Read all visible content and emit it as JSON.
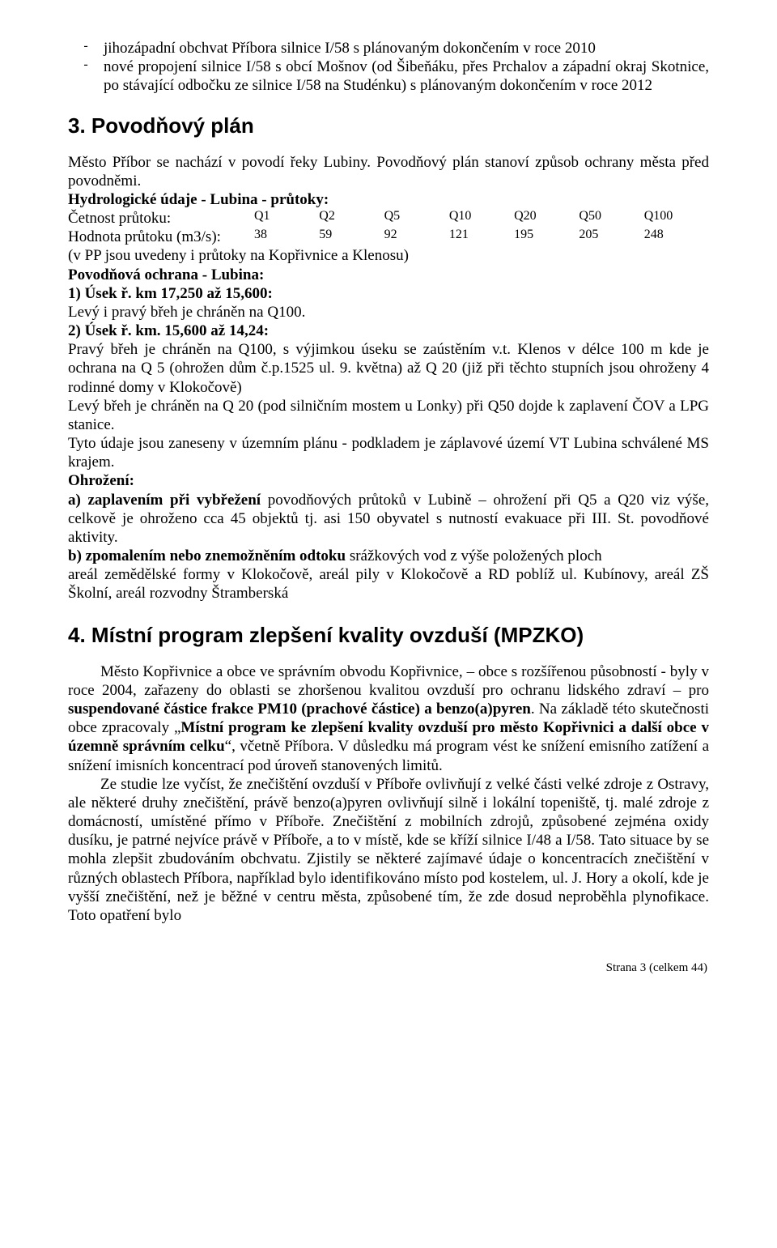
{
  "bullets": [
    "jihozápadní obchvat Příbora silnice I/58 s plánovaným dokončením v roce 2010",
    "nové propojení silnice I/58 s obcí Mošnov (od Šibeňáku, přes Prchalov a západní okraj Skotnice, po stávající odbočku ze silnice I/58 na Studénku) s plánovaným dokončením v roce 2012"
  ],
  "section3": {
    "title": "3. Povodňový plán",
    "intro": "Město Příbor se nachází v povodí řeky Lubiny. Povodňový plán stanoví způsob ochrany města před  povodněmi.",
    "hydro_title": "Hydrologické údaje  - Lubina - průtoky:",
    "row1_label": "Četnost průtoku:",
    "row1_vals": [
      "Q1",
      "Q2",
      "Q5",
      "Q10",
      "Q20",
      "Q50",
      "Q100"
    ],
    "row2_label": "Hodnota průtoku (m3/s):",
    "row2_vals": [
      "38",
      "59",
      "92",
      "121",
      "195",
      "205",
      "248"
    ],
    "hydro_note": "(v PP jsou uvedeny i průtoky na Kopřivnice a Klenosu)",
    "ochrana_heading": "Povodňová ochrana - Lubina:",
    "u1a": "1) Úsek ř. km 17,250 až 15,600:",
    "u1b": " Levý i pravý břeh je chráněn na Q100.",
    "u2a": "2) Úsek ř. km. 15,600 až 14,24:",
    "u2b": "Pravý břeh je chráněn na Q100, s výjimkou úseku se zaústěním v.t. Klenos v délce 100 m kde je ochrana na Q 5 (ohrožen dům č.p.1525 ul. 9. května) až Q 20 (již při těchto stupních jsou ohroženy 4 rodinné domy v Klokočově)",
    "u2c": "Levý břeh  je chráněn na Q 20 (pod silničním mostem u Lonky) při Q50 dojde k zaplavení ČOV a LPG stanice.",
    "u2d": "Tyto údaje jsou zaneseny v územním plánu - podkladem je záplavové území VT Lubina schválené MS krajem.",
    "ohrozeni_heading": "Ohrožení:",
    "a_bold": "a) zaplavením při vybřežení ",
    "a_rest": "povodňových průtoků v Lubině – ohrožení při Q5 a Q20 viz výše,  celkově je ohroženo cca 45 objektů tj. asi 150 obyvatel s nutností evakuace při III. St. povodňové aktivity.",
    "b_bold": "b) zpomalením nebo znemožněním odtoku ",
    "b_rest": "srážkových vod z výše položených ploch",
    "b_cont": "areál zemědělské formy v Klokočově, areál pily v Klokočově a RD poblíž ul. Kubínovy, areál ZŠ Školní, areál rozvodny  Štramberská"
  },
  "section4": {
    "title": "4. Místní program zlepšení kvality ovzduší (MPZKO)",
    "p1a": "Město Kopřivnice a obce ve správním obvodu Kopřivnice, – obce s rozšířenou působností - byly v roce 2004, zařazeny do oblasti se zhoršenou kvalitou ovzduší pro ochranu lidského zdraví – pro ",
    "p1b": "suspendované částice frakce PM10 (prachové částice) a benzo(a)pyren",
    "p1c": ". Na základě  této skutečnosti  obce zpracovaly „",
    "p1d": "Místní program ke zlepšení kvality ovzduší pro město Kopřivnici a další obce v územně správním celku",
    "p1e": "“, včetně Příbora.  V důsledku  má program vést ke snížení emisního zatížení a snížení imisních koncentrací pod úroveň stanovených limitů.",
    "p2": "Ze studie lze vyčíst, že znečištění ovzduší v Příboře ovlivňují z velké části velké zdroje z Ostravy, ale některé druhy znečištění, právě benzo(a)pyren ovlivňují silně i lokální topeniště, tj. malé zdroje z domácností, umístěné přímo v Příboře. Znečištění z mobilních zdrojů, způsobené zejména oxidy dusíku, je patrné nejvíce právě v Příboře, a to v místě, kde se kříží silnice I/48 a I/58. Tato situace by se mohla zlepšit zbudováním obchvatu. Zjistily se některé zajímavé údaje o koncentracích znečištění v různých oblastech Příbora, například bylo identifikováno místo pod kostelem, ul. J. Hory a okolí, kde je vyšší znečištění, než je běžné v centru města, způsobené tím, že zde dosud neproběhla plynofikace. Toto opatření bylo"
  },
  "footer": "Strana 3 (celkem 44)"
}
